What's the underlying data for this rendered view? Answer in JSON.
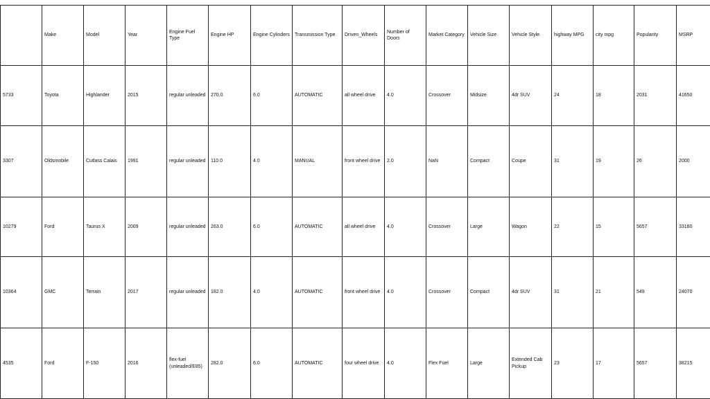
{
  "table": {
    "columns": [
      "",
      "Make",
      "Model",
      "Year",
      "Engine Fuel Type",
      "Engine HP",
      "Engine Cylinders",
      "Transmission Type",
      "Driven_Wheels",
      "Number of Doors",
      "Market Category",
      "Vehicle Size",
      "Vehicle Style",
      "highway MPG",
      "city mpg",
      "Popularity",
      "MSRP"
    ],
    "rows": [
      [
        "5733",
        "Toyota",
        "Highlander",
        "2015",
        "regular unleaded",
        "270.0",
        "6.0",
        "AUTOMATIC",
        "all wheel drive",
        "4.0",
        "Crossover",
        "Midsize",
        "4dr SUV",
        "24",
        "18",
        "2031",
        "41650"
      ],
      [
        "3307",
        "Oldsmobile",
        "Cutlass Calais",
        "1991",
        "regular unleaded",
        "110.0",
        "4.0",
        "MANUAL",
        "front wheel drive",
        "2.0",
        "NaN",
        "Compact",
        "Coupe",
        "31",
        "19",
        "26",
        "2000"
      ],
      [
        "10279",
        "Ford",
        "Taurus X",
        "2009",
        "regular unleaded",
        "263.0",
        "6.0",
        "AUTOMATIC",
        "all wheel drive",
        "4.0",
        "Crossover",
        "Large",
        "Wagon",
        "22",
        "15",
        "5657",
        "33180"
      ],
      [
        "10364",
        "GMC",
        "Terrain",
        "2017",
        "regular unleaded",
        "182.0",
        "4.0",
        "AUTOMATIC",
        "front wheel drive",
        "4.0",
        "Crossover",
        "Compact",
        "4dr SUV",
        "31",
        "21",
        "549",
        "24070"
      ],
      [
        "4535",
        "Ford",
        "F-150",
        "2016",
        "flex-fuel (unleaded/E85)",
        "282.0",
        "6.0",
        "AUTOMATIC",
        "four wheel drive",
        "4.0",
        "Flex Fuel",
        "Large",
        "Extended Cab Pickup",
        "23",
        "17",
        "5657",
        "38215"
      ]
    ]
  }
}
